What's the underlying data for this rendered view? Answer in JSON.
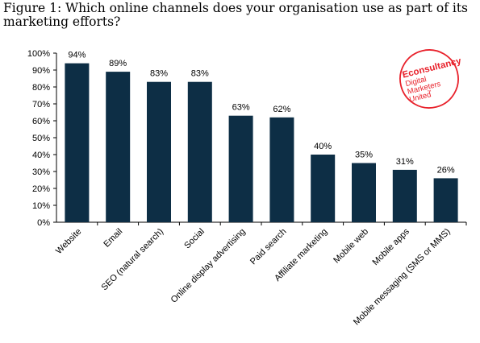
{
  "figure_title": "Figure 1: Which online channels does your organisation use as part of its marketing efforts?",
  "logo": {
    "brand": "Econsultancy",
    "tagline_1": "Digital",
    "tagline_2": "Marketers",
    "tagline_3": "United",
    "trademark": "™",
    "color": "#e8202a"
  },
  "chart_data": {
    "type": "bar",
    "title": "Figure 1: Which online channels does your organisation use as part of its marketing efforts?",
    "categories": [
      "Website",
      "Email",
      "SEO (natural search)",
      "Social",
      "Online display advertising",
      "Paid search",
      "Affiliate marketing",
      "Mobile web",
      "Mobile apps",
      "Mobile messaging (SMS or MMS)"
    ],
    "values": [
      94,
      89,
      83,
      83,
      63,
      62,
      40,
      35,
      31,
      26
    ],
    "data_labels": [
      "94%",
      "89%",
      "83%",
      "83%",
      "63%",
      "62%",
      "40%",
      "35%",
      "31%",
      "26%"
    ],
    "ytick_labels": [
      "0%",
      "10%",
      "20%",
      "30%",
      "40%",
      "50%",
      "60%",
      "70%",
      "80%",
      "90%",
      "100%"
    ],
    "ylim": [
      0,
      100
    ],
    "xlabel": "",
    "ylabel": "",
    "grid": false,
    "legend": "none",
    "bar_color": "#0d2e45"
  }
}
